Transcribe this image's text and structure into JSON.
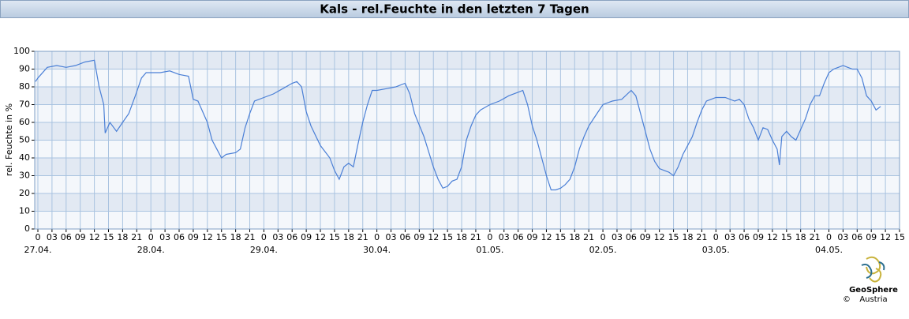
{
  "chart_data": {
    "type": "line",
    "title": "Kals - rel.Feuchte in den letzten 7 Tagen",
    "y_label": "rel. Feuchte in %",
    "logo": {
      "name": "GeoSphere",
      "sub": "Austria",
      "copyright": "©"
    },
    "x": [
      -0.5,
      0,
      2,
      4,
      6,
      8,
      10,
      12,
      13,
      14,
      14.3,
      15.3,
      16.7,
      18,
      19.3,
      20.7,
      22,
      23,
      24,
      26,
      28,
      30,
      32,
      33,
      34,
      36,
      37,
      38,
      39,
      40,
      42,
      43,
      44,
      45,
      46,
      48,
      50,
      52,
      54,
      55,
      56,
      57,
      58,
      60,
      62,
      63,
      64,
      65,
      66,
      67,
      68,
      69,
      70,
      71,
      72,
      74,
      76,
      78,
      79,
      80,
      82,
      84,
      85,
      86,
      87,
      88,
      89,
      90,
      91,
      92,
      93,
      94,
      96,
      98,
      100,
      102,
      103,
      104,
      105,
      106,
      107,
      108,
      109,
      110,
      111,
      112,
      113,
      114,
      115,
      116,
      117,
      118,
      119,
      120,
      122,
      124,
      126,
      127,
      128,
      129,
      130,
      131,
      132,
      133,
      134,
      135,
      136,
      137,
      138,
      139,
      140,
      141,
      142,
      144,
      146,
      148,
      149,
      150,
      151,
      152,
      153,
      154,
      155,
      156,
      157,
      157.5,
      158,
      159,
      160,
      161,
      162,
      163,
      164,
      165,
      166,
      167,
      168,
      169,
      170,
      171,
      172,
      173,
      174,
      175,
      176,
      177,
      178,
      179
    ],
    "series": [
      {
        "name": "rel. Feuchte",
        "color": "#4a7fd6",
        "values": [
          83,
          85,
          91,
          92,
          91,
          92,
          94,
          95,
          80,
          70,
          54,
          60,
          55,
          60,
          65,
          75,
          85,
          88,
          88,
          88,
          89,
          87,
          86,
          73,
          72,
          60,
          50,
          45,
          40,
          42,
          43,
          45,
          57,
          65,
          72,
          74,
          76,
          79,
          82,
          83,
          80,
          66,
          58,
          47,
          40,
          33,
          28,
          35,
          37,
          35,
          48,
          60,
          70,
          78,
          78,
          79,
          80,
          82,
          76,
          65,
          52,
          35,
          28,
          23,
          24,
          27,
          28,
          35,
          50,
          58,
          64,
          67,
          70,
          72,
          75,
          77,
          78,
          70,
          58,
          50,
          40,
          30,
          22,
          22,
          23,
          25,
          28,
          35,
          45,
          52,
          58,
          62,
          66,
          70,
          72,
          73,
          78,
          75,
          65,
          55,
          45,
          38,
          34,
          33,
          32,
          30,
          35,
          42,
          47,
          52,
          60,
          67,
          72,
          74,
          74,
          72,
          73,
          70,
          62,
          57,
          50,
          57,
          56,
          50,
          45,
          36,
          52,
          55,
          52,
          50,
          56,
          62,
          70,
          75,
          75,
          82,
          88,
          90,
          91,
          92,
          91,
          90,
          90,
          85,
          75,
          72,
          67,
          69
        ]
      }
    ],
    "xlim": [
      -0.67,
      183
    ],
    "xticks": [
      0,
      {
        "value": 3,
        "label": "03"
      },
      {
        "value": 6,
        "label": "06"
      },
      {
        "value": 9,
        "label": "09"
      },
      12,
      15,
      18,
      21,
      {
        "value": 24,
        "label": "0"
      },
      {
        "value": 27,
        "label": "03"
      },
      {
        "value": 30,
        "label": "06"
      },
      {
        "value": 33,
        "label": "09"
      },
      {
        "value": 36,
        "label": "12"
      },
      {
        "value": 39,
        "label": "15"
      },
      {
        "value": 42,
        "label": "18"
      },
      {
        "value": 45,
        "label": "21"
      },
      {
        "value": 48,
        "label": "0"
      },
      {
        "value": 51,
        "label": "03"
      },
      {
        "value": 54,
        "label": "06"
      },
      {
        "value": 57,
        "label": "09"
      },
      {
        "value": 60,
        "label": "12"
      },
      {
        "value": 63,
        "label": "15"
      },
      {
        "value": 66,
        "label": "18"
      },
      {
        "value": 69,
        "label": "21"
      },
      {
        "value": 72,
        "label": "0"
      },
      {
        "value": 75,
        "label": "03"
      },
      {
        "value": 78,
        "label": "06"
      },
      {
        "value": 81,
        "label": "09"
      },
      {
        "value": 84,
        "label": "12"
      },
      {
        "value": 87,
        "label": "15"
      },
      {
        "value": 90,
        "label": "18"
      },
      {
        "value": 93,
        "label": "21"
      },
      {
        "value": 96,
        "label": "0"
      },
      {
        "value": 99,
        "label": "03"
      },
      {
        "value": 102,
        "label": "06"
      },
      {
        "value": 105,
        "label": "09"
      },
      {
        "value": 108,
        "label": "12"
      },
      {
        "value": 111,
        "label": "15"
      },
      {
        "value": 114,
        "label": "18"
      },
      {
        "value": 117,
        "label": "21"
      },
      {
        "value": 120,
        "label": "0"
      },
      {
        "value": 123,
        "label": "03"
      },
      {
        "value": 126,
        "label": "06"
      },
      {
        "value": 129,
        "label": "09"
      },
      {
        "value": 132,
        "label": "12"
      },
      {
        "value": 135,
        "label": "15"
      },
      {
        "value": 138,
        "label": "18"
      },
      {
        "value": 141,
        "label": "21"
      },
      {
        "value": 144,
        "label": "0"
      },
      {
        "value": 147,
        "label": "03"
      },
      {
        "value": 150,
        "label": "06"
      },
      {
        "value": 153,
        "label": "09"
      },
      {
        "value": 156,
        "label": "12"
      },
      {
        "value": 159,
        "label": "15"
      },
      {
        "value": 162,
        "label": "18"
      },
      {
        "value": 165,
        "label": "21"
      },
      {
        "value": 168,
        "label": "0"
      },
      {
        "value": 171,
        "label": "03"
      },
      {
        "value": 174,
        "label": "06"
      },
      {
        "value": 177,
        "label": "09"
      },
      {
        "value": 180,
        "label": "12"
      },
      {
        "value": 183,
        "label": "15"
      }
    ],
    "xdate_ticks": [
      {
        "value": 0,
        "label": "27.04."
      },
      {
        "value": 24,
        "label": "28.04."
      },
      {
        "value": 48,
        "label": "29.04."
      },
      {
        "value": 72,
        "label": "30.04."
      },
      {
        "value": 96,
        "label": "01.05."
      },
      {
        "value": 120,
        "label": "02.05."
      },
      {
        "value": 144,
        "label": "03.05."
      },
      {
        "value": 168,
        "label": "04.05."
      }
    ],
    "ylim": [
      0,
      100
    ],
    "yticks": [
      0,
      10,
      20,
      30,
      40,
      50,
      60,
      70,
      80,
      90,
      100
    ],
    "grid": true,
    "band_colors": [
      "#f4f7fb",
      "#e2e9f3"
    ]
  }
}
